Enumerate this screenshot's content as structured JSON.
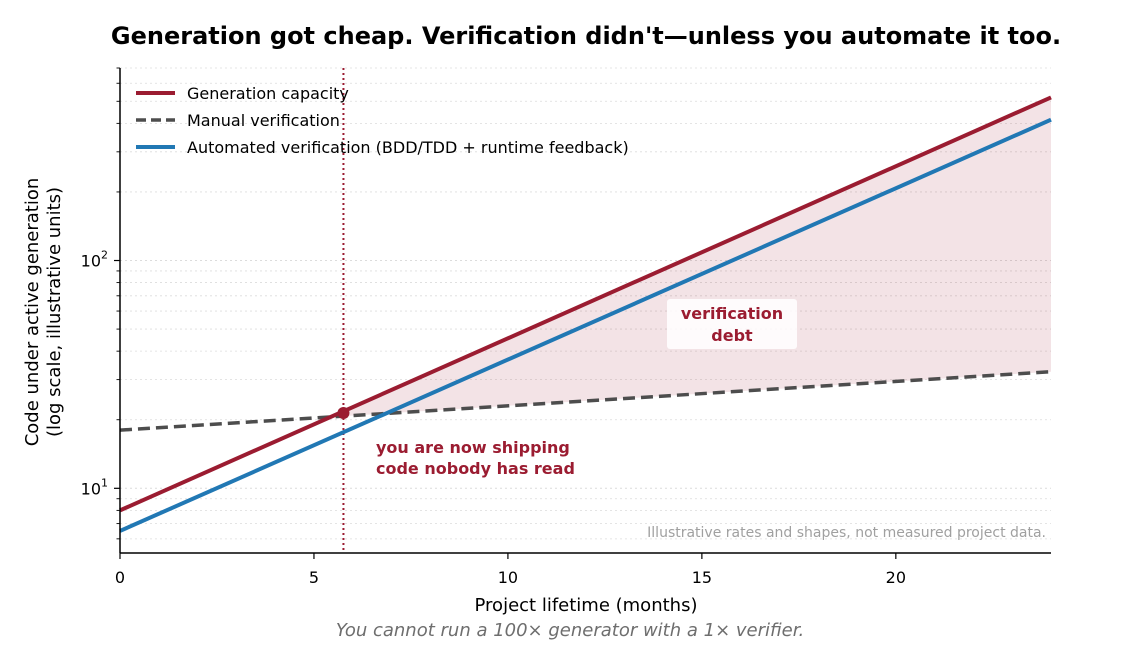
{
  "chart_data": {
    "type": "line",
    "title": "Generation got cheap. Verification didn't—unless you automate it too.",
    "xlabel": "Project lifetime (months)",
    "ylabel": [
      "Code under active generation",
      "(log scale, illustrative units)"
    ],
    "xlim": [
      0,
      24
    ],
    "ylim": [
      5.2,
      700
    ],
    "yscale": "log",
    "x_ticks": [
      0,
      5,
      10,
      15,
      20
    ],
    "y_ticks": [
      {
        "value": 10,
        "base": "10",
        "exp": "1"
      },
      {
        "value": 100,
        "base": "10",
        "exp": "2"
      }
    ],
    "grid": "y-dotted",
    "legend_position": "top-left",
    "series": [
      {
        "name": "Generation capacity",
        "x": [
          0,
          24
        ],
        "y": [
          8.0,
          520
        ],
        "style": "solid",
        "color": "#9b1c31"
      },
      {
        "name": "Manual verification",
        "x": [
          0,
          24
        ],
        "y": [
          18.0,
          32.5
        ],
        "style": "dashed",
        "color": "#4d4d4d"
      },
      {
        "name": "Automated verification (BDD/TDD + runtime feedback)",
        "x": [
          0,
          24
        ],
        "y": [
          6.5,
          415
        ],
        "style": "solid",
        "color": "#2178b4"
      }
    ],
    "shaded_region": {
      "between": [
        "Manual verification",
        "Generation capacity"
      ],
      "from_x": 5.76,
      "color": "#9b1c31"
    },
    "crossover": {
      "x": 5.76,
      "y": 21.4
    },
    "annotations": {
      "gap_label": [
        "verification",
        "debt"
      ],
      "crossover_label": [
        "you are now shipping",
        "code nobody has read"
      ],
      "footnote": "Illustrative rates and shapes, not measured project data."
    },
    "caption": "You cannot run a 100× generator with a 1× verifier."
  }
}
